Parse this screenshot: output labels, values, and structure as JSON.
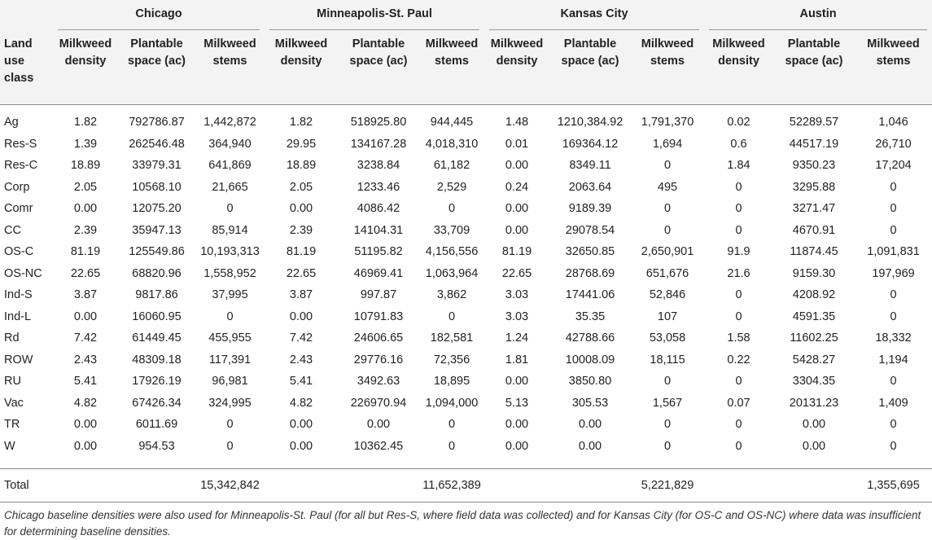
{
  "table": {
    "row_header": "Land use class",
    "cities": [
      {
        "name": "Chicago",
        "columns": [
          "Milkweed density",
          "Plantable space (ac)",
          "Milkweed stems"
        ]
      },
      {
        "name": "Minneapolis-St. Paul",
        "columns": [
          "Milkweed density",
          "Plantable space (ac)",
          "Milkweed stems"
        ]
      },
      {
        "name": "Kansas City",
        "columns": [
          "Milkweed density",
          "Plantable space (ac)",
          "Milkweed stems"
        ]
      },
      {
        "name": "Austin",
        "columns": [
          "Milkweed density",
          "Plantable space (ac)",
          "Milkweed stems"
        ]
      }
    ],
    "rows": [
      {
        "label": "Ag",
        "cells": [
          "1.82",
          "792786.87",
          "1,442,872",
          "1.82",
          "518925.80",
          "944,445",
          "1.48",
          "1210,384.92",
          "1,791,370",
          "0.02",
          "52289.57",
          "1,046"
        ]
      },
      {
        "label": "Res-S",
        "cells": [
          "1.39",
          "262546.48",
          "364,940",
          "29.95",
          "134167.28",
          "4,018,310",
          "0.01",
          "169364.12",
          "1,694",
          "0.6",
          "44517.19",
          "26,710"
        ]
      },
      {
        "label": "Res-C",
        "cells": [
          "18.89",
          "33979.31",
          "641,869",
          "18.89",
          "3238.84",
          "61,182",
          "0.00",
          "8349.11",
          "0",
          "1.84",
          "9350.23",
          "17,204"
        ]
      },
      {
        "label": "Corp",
        "cells": [
          "2.05",
          "10568.10",
          "21,665",
          "2.05",
          "1233.46",
          "2,529",
          "0.24",
          "2063.64",
          "495",
          "0",
          "3295.88",
          "0"
        ]
      },
      {
        "label": "Comr",
        "cells": [
          "0.00",
          "12075.20",
          "0",
          "0.00",
          "4086.42",
          "0",
          "0.00",
          "9189.39",
          "0",
          "0",
          "3271.47",
          "0"
        ]
      },
      {
        "label": "CC",
        "cells": [
          "2.39",
          "35947.13",
          "85,914",
          "2.39",
          "14104.31",
          "33,709",
          "0.00",
          "29078.54",
          "0",
          "0",
          "4670.91",
          "0"
        ]
      },
      {
        "label": "OS-C",
        "cells": [
          "81.19",
          "125549.86",
          "10,193,313",
          "81.19",
          "51195.82",
          "4,156,556",
          "81.19",
          "32650.85",
          "2,650,901",
          "91.9",
          "11874.45",
          "1,091,831"
        ]
      },
      {
        "label": "OS-NC",
        "cells": [
          "22.65",
          "68820.96",
          "1,558,952",
          "22.65",
          "46969.41",
          "1,063,964",
          "22.65",
          "28768.69",
          "651,676",
          "21.6",
          "9159.30",
          "197,969"
        ]
      },
      {
        "label": "Ind-S",
        "cells": [
          "3.87",
          "9817.86",
          "37,995",
          "3.87",
          "997.87",
          "3,862",
          "3.03",
          "17441.06",
          "52,846",
          "0",
          "4208.92",
          "0"
        ]
      },
      {
        "label": "Ind-L",
        "cells": [
          "0.00",
          "16060.95",
          "0",
          "0.00",
          "10791.83",
          "0",
          "3.03",
          "35.35",
          "107",
          "0",
          "4591.35",
          "0"
        ]
      },
      {
        "label": "Rd",
        "cells": [
          "7.42",
          "61449.45",
          "455,955",
          "7.42",
          "24606.65",
          "182,581",
          "1.24",
          "42788.66",
          "53,058",
          "1.58",
          "11602.25",
          "18,332"
        ]
      },
      {
        "label": "ROW",
        "cells": [
          "2.43",
          "48309.18",
          "117,391",
          "2.43",
          "29776.16",
          "72,356",
          "1.81",
          "10008.09",
          "18,115",
          "0.22",
          "5428.27",
          "1,194"
        ]
      },
      {
        "label": "RU",
        "cells": [
          "5.41",
          "17926.19",
          "96,981",
          "5.41",
          "3492.63",
          "18,895",
          "0.00",
          "3850.80",
          "0",
          "0",
          "3304.35",
          "0"
        ]
      },
      {
        "label": "Vac",
        "cells": [
          "4.82",
          "67426.34",
          "324,995",
          "4.82",
          "226970.94",
          "1,094,000",
          "5.13",
          "305.53",
          "1,567",
          "0.07",
          "20131.23",
          "1,409"
        ]
      },
      {
        "label": "TR",
        "cells": [
          "0.00",
          "6011.69",
          "0",
          "0.00",
          "0.00",
          "0",
          "0.00",
          "0.00",
          "0",
          "0",
          "0.00",
          "0"
        ]
      },
      {
        "label": "W",
        "cells": [
          "0.00",
          "954.53",
          "0",
          "0.00",
          "10362.45",
          "0",
          "0.00",
          "0.00",
          "0",
          "0",
          "0.00",
          "0"
        ]
      }
    ],
    "total": {
      "label": "Total",
      "stems": [
        "15,342,842",
        "11,652,389",
        "5,221,829",
        "1,355,695"
      ]
    },
    "footnote": "Chicago baseline densities were also used for Minneapolis-St. Paul (for all but Res-S, where field data was collected) and for Kansas City (for OS-C and OS-NC) where data was insufficient for determining baseline densities."
  }
}
